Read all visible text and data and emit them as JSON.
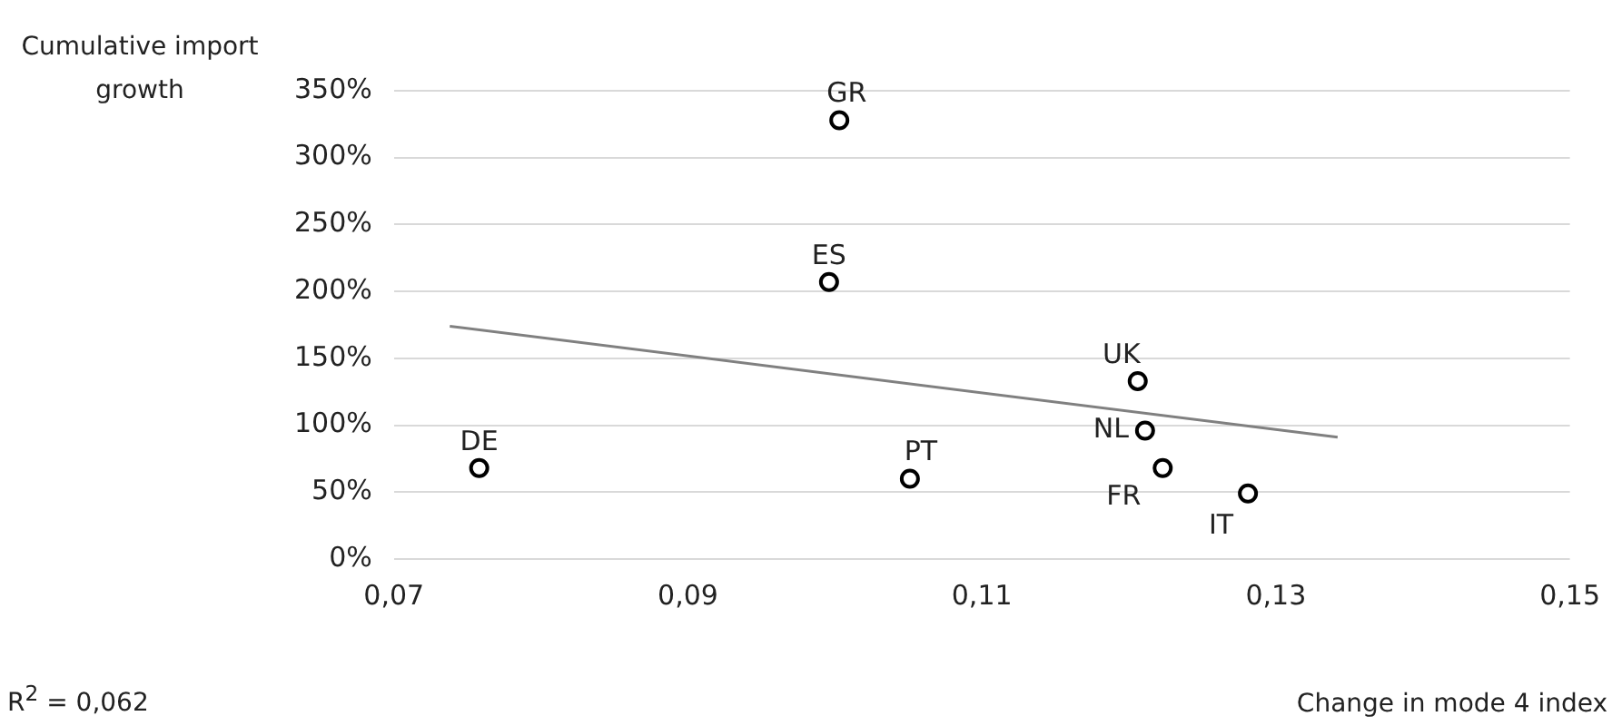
{
  "chart_data": {
    "type": "scatter",
    "ylabel": "Cumulative import growth",
    "xlabel": "Change in mode 4 index",
    "xlim": [
      0.07,
      0.15
    ],
    "xticks": [
      {
        "value": 0.07,
        "label": "0,07"
      },
      {
        "value": 0.09,
        "label": "0,09"
      },
      {
        "value": 0.11,
        "label": "0,11"
      },
      {
        "value": 0.13,
        "label": "0,13"
      },
      {
        "value": 0.15,
        "label": "0,15"
      }
    ],
    "ylim": [
      0,
      350
    ],
    "yticks": [
      {
        "value": 0,
        "label": "0%"
      },
      {
        "value": 50,
        "label": "50%"
      },
      {
        "value": 100,
        "label": "100%"
      },
      {
        "value": 150,
        "label": "150%"
      },
      {
        "value": 200,
        "label": "200%"
      },
      {
        "value": 250,
        "label": "250%"
      },
      {
        "value": 300,
        "label": "300%"
      },
      {
        "value": 350,
        "label": "350%"
      }
    ],
    "grid": "y",
    "legend": false,
    "series": [
      {
        "marker": "circle",
        "color": "#000000",
        "x": [
          0.1003,
          0.0996,
          0.0758,
          0.1051,
          0.1206,
          0.1211,
          0.1223,
          0.1281
        ],
        "values": [
          328,
          207,
          68,
          60,
          133,
          96,
          68,
          49
        ]
      },
      {
        "type": "line",
        "marker": "none",
        "color": "#808080",
        "x": [
          0.0738,
          0.1342
        ],
        "values": [
          174,
          91
        ]
      }
    ],
    "annotations": [
      {
        "text": "GR",
        "x": 0.1003,
        "y": 328
      },
      {
        "text": "ES",
        "x": 0.0996,
        "y": 207
      },
      {
        "text": "DE",
        "x": 0.0758,
        "y": 68
      },
      {
        "text": "PT",
        "x": 0.1051,
        "y": 60
      },
      {
        "text": "UK",
        "x": 0.1206,
        "y": 133
      },
      {
        "text": "NL",
        "x": 0.1211,
        "y": 96
      },
      {
        "text": "FR",
        "x": 0.1223,
        "y": 68
      },
      {
        "text": "IT",
        "x": 0.1281,
        "y": 49
      },
      "R$^{2}$ = 0,062"
    ]
  }
}
